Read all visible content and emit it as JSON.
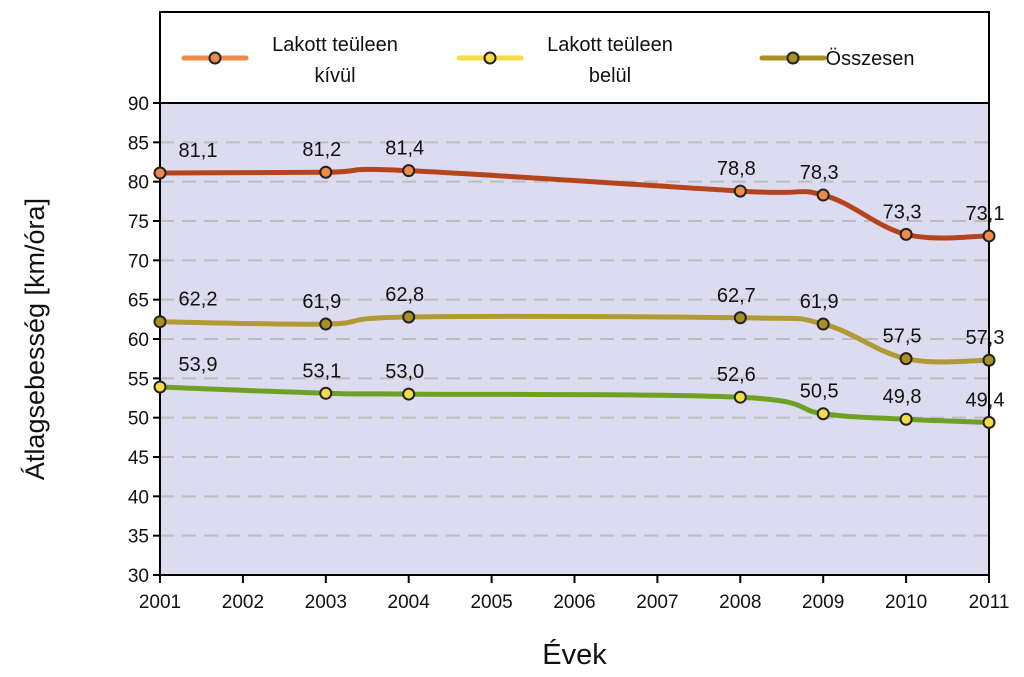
{
  "chart_data": {
    "type": "line",
    "title": "",
    "xlabel": "Évek",
    "ylabel": "Átlagsebesség [km/óra]",
    "ylim": [
      30,
      90
    ],
    "y_ticks": [
      "30",
      "35",
      "40",
      "45",
      "50",
      "55",
      "60",
      "65",
      "70",
      "75",
      "80",
      "85",
      "90"
    ],
    "categories": [
      "2001",
      "2002",
      "2003",
      "2004",
      "2005",
      "2006",
      "2007",
      "2008",
      "2009",
      "2010",
      "2011"
    ],
    "grid": "horizontal dashed",
    "legend_position": "top",
    "background_color": "#dcdbf0",
    "series": [
      {
        "name_lines": [
          "Lakott teüleen",
          "kívül"
        ],
        "line_color": "#b5441c",
        "legend_color": "#ee8a4a",
        "x": [
          "2001",
          "2003",
          "2004",
          "2008",
          "2009",
          "2010",
          "2011"
        ],
        "values": [
          81.1,
          81.2,
          81.4,
          78.8,
          78.3,
          73.3,
          73.1
        ],
        "labels": [
          "81,1",
          "81,2",
          "81,4",
          "78,8",
          "78,3",
          "73,3",
          "73,1"
        ]
      },
      {
        "name_lines": [
          "Lakott teüleen",
          "belül"
        ],
        "line_color": "#6fa022",
        "legend_color": "#f6dc45",
        "x": [
          "2001",
          "2003",
          "2004",
          "2008",
          "2009",
          "2010",
          "2011"
        ],
        "values": [
          53.9,
          53.1,
          53.0,
          52.6,
          50.5,
          49.8,
          49.4
        ],
        "labels": [
          "53,9",
          "53,1",
          "53,0",
          "52,6",
          "50,5",
          "49,8",
          "49,4"
        ]
      },
      {
        "name_lines": [
          "Összesen"
        ],
        "line_color": "#b09a33",
        "legend_color": "#a89025",
        "x": [
          "2001",
          "2003",
          "2004",
          "2008",
          "2009",
          "2010",
          "2011"
        ],
        "values": [
          62.2,
          61.9,
          62.8,
          62.7,
          61.9,
          57.5,
          57.3
        ],
        "labels": [
          "62,2",
          "61,9",
          "62,8",
          "62,7",
          "61,9",
          "57,5",
          "57,3"
        ]
      }
    ]
  }
}
